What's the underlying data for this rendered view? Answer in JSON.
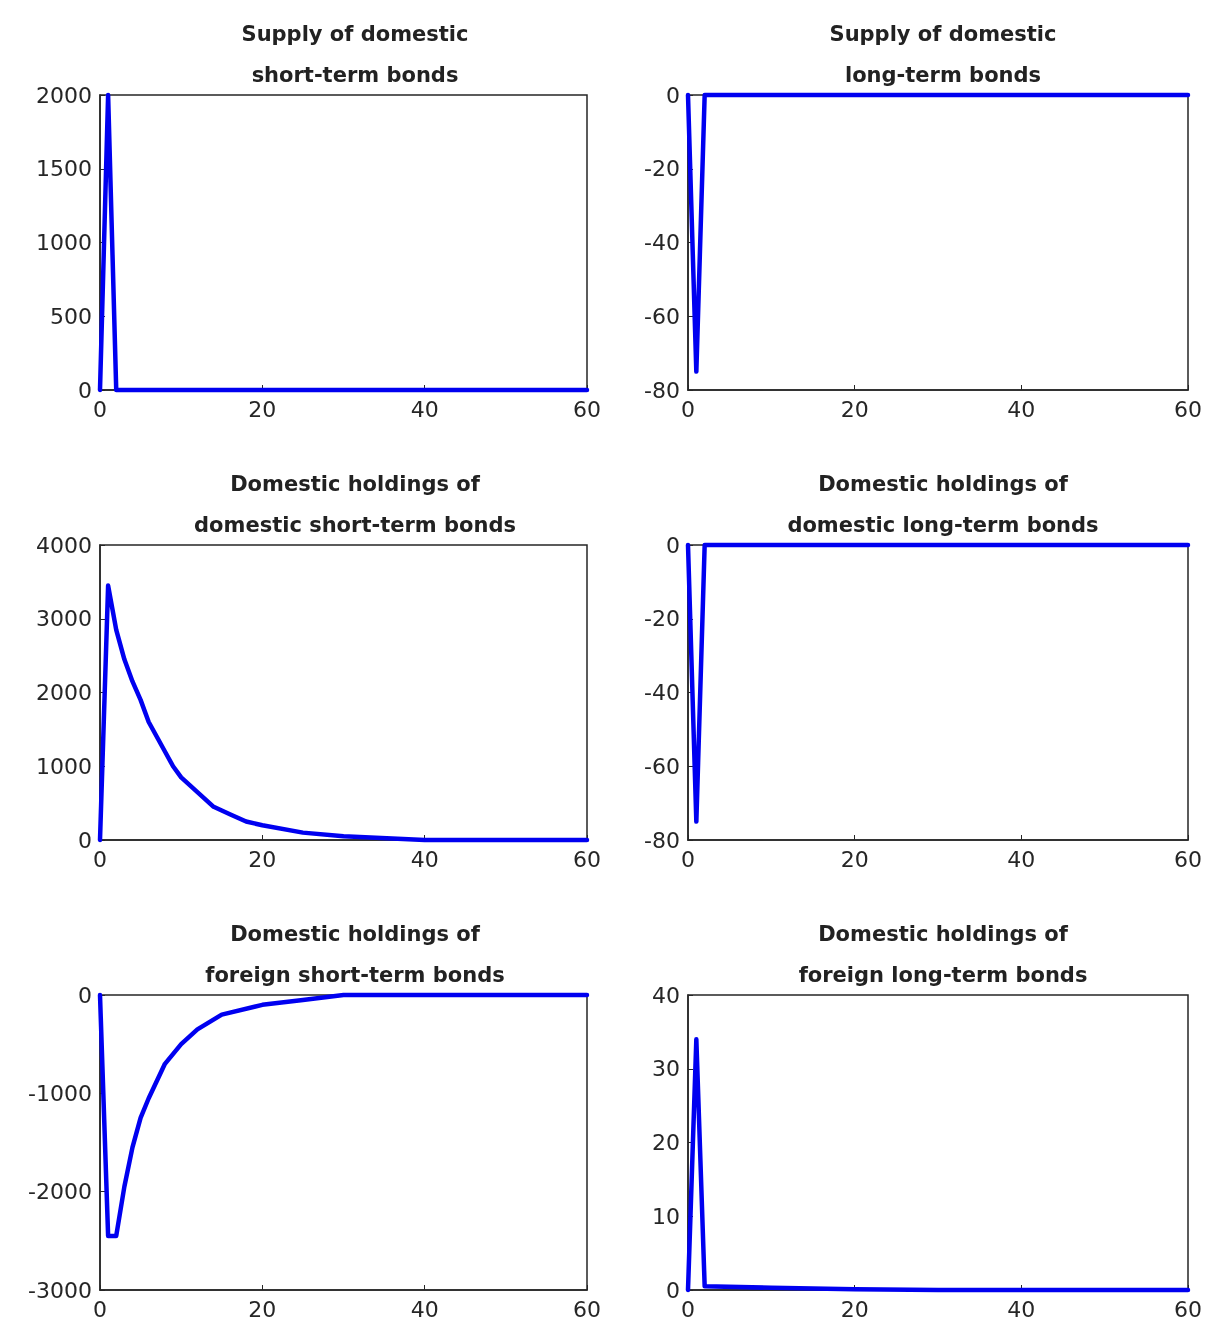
{
  "chart_data": [
    {
      "type": "line",
      "title": "Supply of domestic short-term bonds",
      "color": "#0000f0",
      "marker": "none",
      "x": [
        0,
        1,
        2,
        10,
        20,
        30,
        40,
        50,
        60
      ],
      "values": [
        0,
        2000,
        0,
        0,
        0,
        0,
        0,
        0,
        0
      ],
      "xlim": [
        0,
        60
      ],
      "xticks": [
        0,
        20,
        40,
        60
      ],
      "ylim": [
        0,
        2000
      ],
      "yticks": [
        0,
        500,
        1000,
        1500,
        2000
      ]
    },
    {
      "type": "line",
      "title": "Supply of domestic long-term bonds",
      "color": "#0000f0",
      "marker": "none",
      "x": [
        0,
        1,
        2,
        10,
        20,
        30,
        40,
        50,
        60
      ],
      "values": [
        0,
        -75,
        0,
        0,
        0,
        0,
        0,
        0,
        0
      ],
      "xlim": [
        0,
        60
      ],
      "xticks": [
        0,
        20,
        40,
        60
      ],
      "ylim": [
        -80,
        0
      ],
      "yticks": [
        -80,
        -60,
        -40,
        -20,
        0
      ]
    },
    {
      "type": "line",
      "title": "Domestic holdings of domestic short-term bonds",
      "color": "#0000f0",
      "marker": "none",
      "x": [
        0,
        1,
        2,
        3,
        4,
        5,
        6,
        7,
        8,
        9,
        10,
        12,
        14,
        16,
        18,
        20,
        25,
        30,
        40,
        50,
        60
      ],
      "values": [
        0,
        3450,
        2850,
        2450,
        2150,
        1900,
        1600,
        1400,
        1200,
        1000,
        850,
        650,
        450,
        350,
        250,
        200,
        100,
        50,
        0,
        0,
        0
      ],
      "xlim": [
        0,
        60
      ],
      "xticks": [
        0,
        20,
        40,
        60
      ],
      "ylim": [
        0,
        4000
      ],
      "yticks": [
        0,
        1000,
        2000,
        3000,
        4000
      ]
    },
    {
      "type": "line",
      "title": "Domestic holdings of domestic long-term bonds",
      "color": "#0000f0",
      "marker": "none",
      "x": [
        0,
        1,
        2,
        10,
        20,
        30,
        40,
        50,
        60
      ],
      "values": [
        0,
        -75,
        0,
        0,
        0,
        0,
        0,
        0,
        0
      ],
      "xlim": [
        0,
        60
      ],
      "xticks": [
        0,
        20,
        40,
        60
      ],
      "ylim": [
        -80,
        0
      ],
      "yticks": [
        -80,
        -60,
        -40,
        -20,
        0
      ]
    },
    {
      "type": "line",
      "title": "Domestic holdings of foreign short-term bonds",
      "color": "#0000f0",
      "marker": "none",
      "x": [
        0,
        1,
        2,
        3,
        4,
        5,
        6,
        8,
        10,
        12,
        15,
        20,
        25,
        30,
        40,
        50,
        60
      ],
      "values": [
        0,
        -2450,
        -2450,
        -1950,
        -1550,
        -1250,
        -1050,
        -700,
        -500,
        -350,
        -200,
        -100,
        -50,
        0,
        0,
        0,
        0
      ],
      "xlim": [
        0,
        60
      ],
      "xticks": [
        0,
        20,
        40,
        60
      ],
      "ylim": [
        -3000,
        0
      ],
      "yticks": [
        -3000,
        -2000,
        -1000,
        0
      ]
    },
    {
      "type": "line",
      "title": "Domestic holdings of foreign long-term bonds",
      "color": "#0000f0",
      "marker": "none",
      "x": [
        0,
        1,
        2,
        10,
        20,
        30,
        40,
        50,
        60
      ],
      "values": [
        0,
        34,
        0.5,
        0.3,
        0.1,
        0,
        0,
        0,
        0
      ],
      "xlim": [
        0,
        60
      ],
      "xticks": [
        0,
        20,
        40,
        60
      ],
      "ylim": [
        0,
        40
      ],
      "yticks": [
        0,
        10,
        20,
        30,
        40
      ]
    }
  ]
}
